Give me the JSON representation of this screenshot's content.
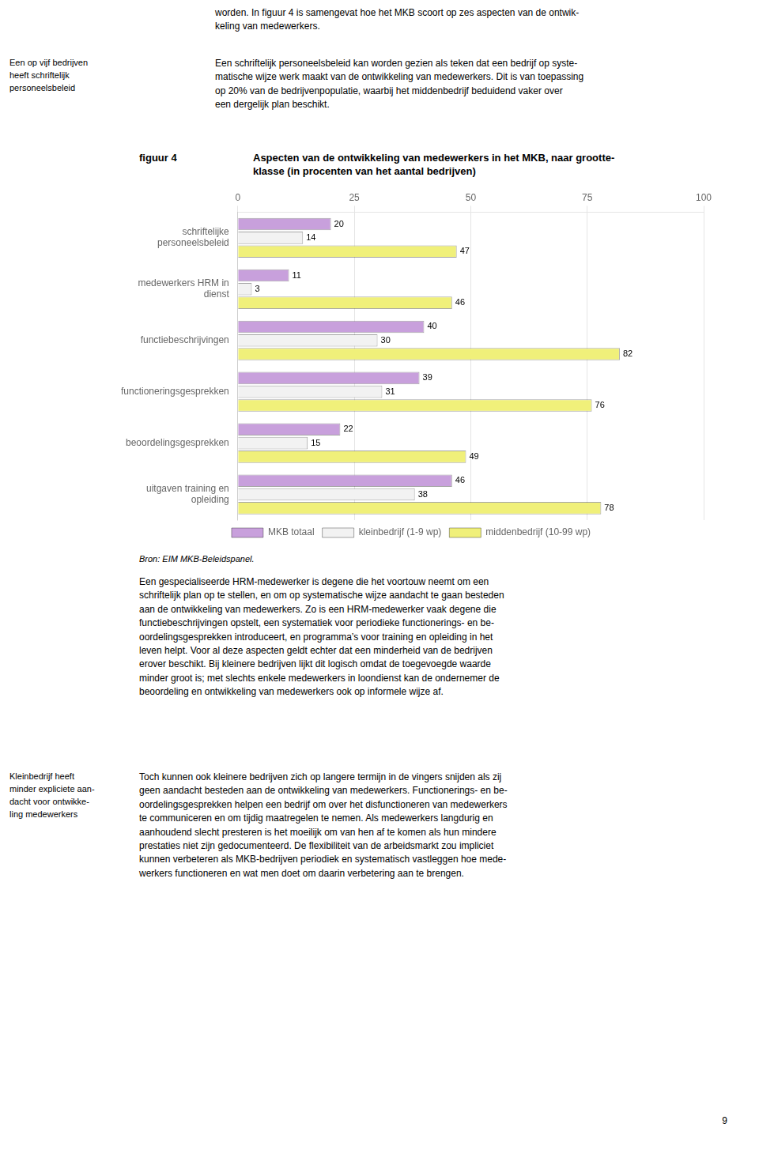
{
  "chart_data": {
    "type": "bar",
    "orientation": "horizontal",
    "title": "Aspecten van de ontwikkeling van medewerkers in het MKB, naar grootte-\nklasse (in procenten van het aantal bedrijven)",
    "categories": [
      "schriftelijke\npersoneelsbeleid",
      "medewerkers HRM in\ndienst",
      "functiebeschrijvingen",
      "functioneringsgesprekken",
      "beoordelingsgesprekken",
      "uitgaven training en\nopleiding"
    ],
    "series": [
      {
        "name": "MKB totaal",
        "color": "#c8a0dc",
        "values": [
          20,
          11,
          40,
          39,
          22,
          46
        ]
      },
      {
        "name": "kleinbedrijf (1-9 wp)",
        "color": "#f2f2f2",
        "values": [
          14,
          3,
          30,
          31,
          15,
          38
        ]
      },
      {
        "name": "middenbedrijf (10-99 wp)",
        "color": "#f0f07a",
        "values": [
          47,
          46,
          82,
          76,
          49,
          78
        ]
      }
    ],
    "xlim": [
      0,
      100
    ],
    "xticks": [
      0,
      25,
      50,
      75,
      100
    ],
    "grid": true,
    "legend": "bottom",
    "data_labels": true,
    "annotations": [
      "worden. In figuur 4 is samengevat hoe het MKB scoort op zes aspecten van de ontwik-\nkeling van medewerkers.",
      "Een op vijf bedrijven\nheeft schriftelijk\npersoneelsbeleid",
      "Een schriftelijk personeelsbeleid kan worden gezien als teken dat een bedrijf op syste-\nmatische wijze werk maakt van de ontwikkeling van medewerkers. Dit is van toepassing\nop 20% van de bedrijvenpopulatie, waarbij het middenbedrijf beduidend vaker over\neen dergelijk plan beschikt.",
      "figuur 4",
      "Bron: EIM MKB-Beleidspanel.",
      "Een gespecialiseerde HRM-medewerker is degene die het voortouw neemt om een\nschriftelijk plan op te stellen, en om op systematische wijze aandacht te gaan besteden\naan de ontwikkeling van medewerkers. Zo is een HRM-medewerker vaak degene die\nfunctiebeschrijvingen opstelt, een systematiek voor periodieke functionerings- en be-\noordelingsgesprekken introduceert, en programma’s voor training en opleiding in het\nleven helpt. Voor al deze aspecten geldt echter dat een minderheid van de bedrijven\nerover beschikt. Bij kleinere bedrijven lijkt dit logisch omdat de toegevoegde waarde\nminder groot is; met slechts enkele medewerkers in loondienst kan de ondernemer de\nbeoordeling en ontwikkeling van medewerkers ook op informele wijze af.",
      "Kleinbedrijf heeft\nminder expliciete aan-\ndacht voor ontwikke-\nling medewerkers",
      "Toch kunnen ook kleinere bedrijven zich op langere termijn in de vingers snijden als zij\ngeen aandacht besteden aan de ontwikkeling van medewerkers. Functionerings- en be-\noordelingsgesprekken helpen een bedrijf om over het disfunctioneren van medewerkers\nte communiceren en om tijdig maatregelen te nemen. Als medewerkers langdurig en\naanhoudend slecht presteren is het moeilijk om van hen af te komen als hun mindere\nprestaties niet zijn gedocumenteerd. De flexibiliteit van de arbeidsmarkt zou impliciet\nkunnen verbeteren als MKB-bedrijven periodiek en systematisch vastleggen hoe mede-\nwerkers functioneren en wat men doet om daarin verbetering aan te brengen.",
      "9"
    ]
  }
}
